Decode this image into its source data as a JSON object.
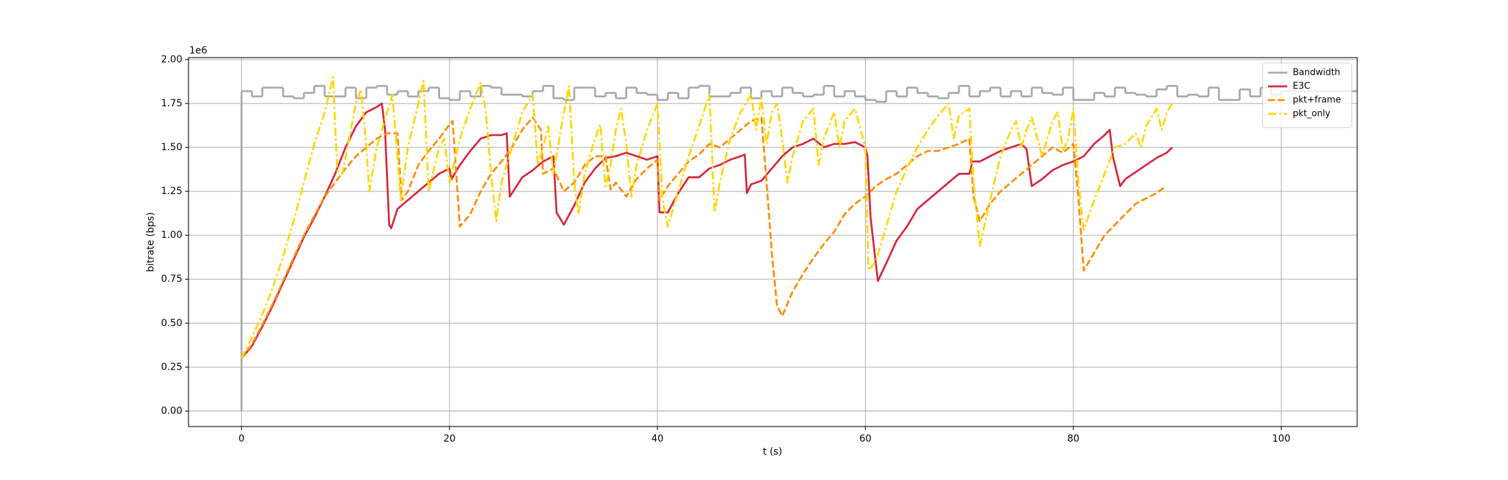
{
  "chart_data": {
    "type": "line",
    "x_label": "t (s)",
    "y_label": "bitrate (bps)",
    "y_offset_label": "1e6",
    "xlim": [
      -5.1,
      107.3
    ],
    "xticks": [
      0,
      20,
      40,
      60,
      80,
      100
    ],
    "ylim": [
      -88000,
      2011000
    ],
    "yticks": [
      {
        "value": 0,
        "label": "0.00"
      },
      {
        "value": 250000,
        "label": "0.25"
      },
      {
        "value": 500000,
        "label": "0.50"
      },
      {
        "value": 750000,
        "label": "0.75"
      },
      {
        "value": 1000000,
        "label": "1.00"
      },
      {
        "value": 1250000,
        "label": "1.25"
      },
      {
        "value": 1500000,
        "label": "1.50"
      },
      {
        "value": 1750000,
        "label": "1.75"
      },
      {
        "value": 2000000,
        "label": "2.00"
      }
    ],
    "grid": true,
    "legend": "upper right",
    "series": [
      {
        "name": "Bandwidth",
        "color": "#a9a9a9",
        "dash": "solid",
        "drawstyle": "steps-post",
        "x": [
          0,
          0,
          1,
          2,
          3,
          4,
          5,
          6,
          7,
          8,
          9,
          10,
          11,
          12,
          13,
          14,
          15,
          16,
          17,
          18,
          19,
          20,
          21,
          22,
          23,
          24,
          25,
          26,
          27,
          28,
          29,
          30,
          31,
          32,
          33,
          34,
          35,
          36,
          37,
          38,
          39,
          40,
          41,
          42,
          43,
          44,
          45,
          46,
          47,
          48,
          49,
          50,
          51,
          52,
          53,
          54,
          55,
          56,
          57,
          58,
          59,
          60,
          61,
          62,
          63,
          64,
          65,
          66,
          67,
          68,
          69,
          70,
          71,
          72,
          73,
          74,
          75,
          76,
          77,
          78,
          79,
          80,
          81,
          82,
          83,
          84,
          85,
          86,
          87,
          88,
          89,
          90,
          91,
          92,
          93,
          94,
          95,
          96,
          97,
          98,
          99,
          100
        ],
        "values": [
          0,
          1820000,
          1790000,
          1840000,
          1840000,
          1790000,
          1780000,
          1810000,
          1850000,
          1790000,
          1790000,
          1840000,
          1780000,
          1840000,
          1850000,
          1800000,
          1820000,
          1790000,
          1820000,
          1840000,
          1780000,
          1770000,
          1820000,
          1790000,
          1850000,
          1840000,
          1800000,
          1800000,
          1790000,
          1820000,
          1850000,
          1780000,
          1770000,
          1840000,
          1840000,
          1790000,
          1810000,
          1780000,
          1840000,
          1810000,
          1800000,
          1770000,
          1810000,
          1780000,
          1840000,
          1850000,
          1790000,
          1790000,
          1810000,
          1840000,
          1780000,
          1820000,
          1790000,
          1840000,
          1810000,
          1790000,
          1800000,
          1850000,
          1790000,
          1820000,
          1790000,
          1770000,
          1760000,
          1820000,
          1790000,
          1840000,
          1810000,
          1790000,
          1780000,
          1810000,
          1850000,
          1790000,
          1820000,
          1840000,
          1790000,
          1820000,
          1790000,
          1840000,
          1810000,
          1800000,
          1840000,
          1770000,
          1770000,
          1810000,
          1790000,
          1840000,
          1810000,
          1800000,
          1790000,
          1830000,
          1850000,
          1790000,
          1800000,
          1790000,
          1840000,
          1770000,
          1770000,
          1830000,
          1790000,
          1840000,
          1800000,
          1820000
        ]
      },
      {
        "name": "E3C",
        "color": "#d7263d",
        "dash": "solid",
        "x": [
          0,
          1,
          2,
          3,
          4,
          5,
          6,
          7,
          8,
          9,
          10,
          11,
          12,
          13,
          13.5,
          13.8,
          14.2,
          14.4,
          15,
          16,
          17,
          18,
          19,
          20,
          20.2,
          21,
          22,
          23,
          24,
          25,
          25.5,
          25.8,
          27,
          28,
          29,
          30,
          30.3,
          31,
          32,
          33,
          34,
          35,
          36,
          37,
          38,
          39,
          40,
          40.2,
          41,
          42,
          43,
          44,
          45,
          46,
          47,
          48,
          48.4,
          48.6,
          49,
          50,
          51,
          52,
          53,
          54,
          55,
          56,
          57,
          58,
          59,
          60,
          60.2,
          60.5,
          61.2,
          62,
          63,
          64,
          65,
          66,
          67,
          68,
          69,
          70,
          70.3,
          71,
          72,
          73,
          74,
          75,
          75.5,
          76,
          77,
          78,
          79,
          80,
          81,
          82,
          83,
          83.5,
          83.8,
          84.5,
          85,
          86,
          87,
          88,
          89,
          89.5
        ],
        "values": [
          300000,
          370000,
          480000,
          600000,
          730000,
          860000,
          990000,
          1100000,
          1220000,
          1350000,
          1500000,
          1620000,
          1700000,
          1730000,
          1750000,
          1600000,
          1060000,
          1040000,
          1150000,
          1200000,
          1250000,
          1300000,
          1350000,
          1380000,
          1320000,
          1400000,
          1480000,
          1550000,
          1570000,
          1570000,
          1580000,
          1220000,
          1330000,
          1370000,
          1420000,
          1450000,
          1130000,
          1060000,
          1170000,
          1300000,
          1380000,
          1440000,
          1450000,
          1470000,
          1450000,
          1430000,
          1450000,
          1130000,
          1130000,
          1240000,
          1330000,
          1330000,
          1380000,
          1400000,
          1430000,
          1450000,
          1460000,
          1240000,
          1290000,
          1310000,
          1380000,
          1450000,
          1500000,
          1520000,
          1550000,
          1500000,
          1520000,
          1520000,
          1530000,
          1500000,
          1450000,
          1100000,
          740000,
          840000,
          970000,
          1050000,
          1150000,
          1200000,
          1250000,
          1300000,
          1350000,
          1350000,
          1420000,
          1420000,
          1450000,
          1480000,
          1500000,
          1520000,
          1490000,
          1280000,
          1320000,
          1370000,
          1400000,
          1420000,
          1450000,
          1520000,
          1570000,
          1600000,
          1450000,
          1280000,
          1320000,
          1360000,
          1400000,
          1440000,
          1470000,
          1500000
        ]
      },
      {
        "name": "pkt+frame",
        "color": "#ff8c00",
        "dash": "dashed",
        "x": [
          0,
          1,
          2,
          3,
          4,
          5,
          6,
          7,
          8,
          9,
          10,
          11,
          12,
          13,
          14,
          15,
          15.4,
          16,
          17,
          18,
          19,
          20,
          20.3,
          21,
          22,
          23,
          24,
          25,
          26,
          27,
          28,
          28.8,
          29,
          30,
          31,
          32,
          33,
          34,
          35,
          35.5,
          36,
          37,
          38,
          39,
          40,
          40.2,
          41,
          42,
          43,
          44,
          45,
          46,
          47,
          48,
          49,
          50,
          50.5,
          51,
          51.5,
          52,
          53,
          54,
          55,
          56,
          57,
          58,
          59,
          60,
          61,
          62,
          63,
          64,
          65,
          66,
          67,
          68,
          69,
          70,
          70.4,
          71,
          72,
          73,
          74,
          75,
          76,
          77,
          78,
          79,
          80,
          80.5,
          81,
          82,
          83,
          84,
          85,
          86,
          87,
          88,
          88.7
        ],
        "values": [
          300000,
          380000,
          490000,
          610000,
          740000,
          870000,
          1000000,
          1110000,
          1220000,
          1300000,
          1380000,
          1450000,
          1500000,
          1550000,
          1580000,
          1580000,
          1200000,
          1250000,
          1400000,
          1480000,
          1550000,
          1630000,
          1650000,
          1050000,
          1120000,
          1250000,
          1350000,
          1420000,
          1500000,
          1600000,
          1670000,
          1600000,
          1350000,
          1380000,
          1250000,
          1300000,
          1400000,
          1450000,
          1450000,
          1260000,
          1300000,
          1220000,
          1320000,
          1380000,
          1430000,
          1200000,
          1280000,
          1350000,
          1420000,
          1460000,
          1520000,
          1500000,
          1550000,
          1600000,
          1650000,
          1670000,
          1300000,
          900000,
          600000,
          540000,
          680000,
          780000,
          870000,
          950000,
          1020000,
          1120000,
          1180000,
          1220000,
          1280000,
          1320000,
          1350000,
          1400000,
          1450000,
          1480000,
          1480000,
          1500000,
          1520000,
          1550000,
          1220000,
          1080000,
          1180000,
          1250000,
          1300000,
          1350000,
          1400000,
          1450000,
          1500000,
          1470000,
          1520000,
          1200000,
          800000,
          900000,
          1000000,
          1060000,
          1120000,
          1180000,
          1210000,
          1240000,
          1270000
        ]
      },
      {
        "name": "pkt_only",
        "color": "#ffd700",
        "dash": "dashdot",
        "x": [
          0,
          1,
          2,
          3,
          4,
          5,
          6,
          7,
          8,
          8.8,
          9.2,
          9.7,
          10.5,
          11,
          11.5,
          12,
          12.3,
          13,
          14,
          14.5,
          15,
          15.3,
          16,
          17,
          17.5,
          18,
          19,
          19.5,
          20,
          21,
          22,
          23,
          23.5,
          24,
          24.5,
          25,
          26,
          27,
          28,
          28.5,
          29,
          29.5,
          30,
          31,
          31.5,
          32,
          32.4,
          33,
          34,
          34.5,
          35,
          35.5,
          36,
          36.5,
          37,
          37.5,
          38,
          39,
          40,
          40.5,
          41,
          42,
          43,
          44,
          45,
          45.5,
          46,
          47,
          48,
          49,
          49.5,
          50,
          50.5,
          51,
          51.5,
          52,
          52.5,
          53,
          54,
          55,
          55.5,
          56,
          57,
          57.5,
          58,
          59,
          60,
          60.3,
          61,
          62,
          63,
          64,
          65,
          66,
          67,
          68,
          68.5,
          69,
          70,
          70.4,
          71,
          72,
          73,
          74,
          74.5,
          75,
          75.5,
          76,
          77,
          77.5,
          78,
          78.5,
          79,
          79.5,
          80,
          80.5,
          81,
          82,
          83,
          84,
          85,
          86,
          86.5,
          87,
          88,
          88.5,
          89,
          89.5
        ],
        "values": [
          300000,
          420000,
          550000,
          700000,
          880000,
          1080000,
          1300000,
          1520000,
          1700000,
          1900000,
          1370000,
          1350000,
          1600000,
          1750000,
          1830000,
          1500000,
          1250000,
          1500000,
          1700000,
          1800000,
          1450000,
          1200000,
          1500000,
          1750000,
          1880000,
          1250000,
          1500000,
          1550000,
          1300000,
          1550000,
          1720000,
          1870000,
          1700000,
          1350000,
          1080000,
          1300000,
          1500000,
          1700000,
          1800000,
          1400000,
          1500000,
          1620000,
          1350000,
          1700000,
          1850000,
          1300000,
          1120000,
          1350000,
          1550000,
          1630000,
          1280000,
          1400000,
          1600000,
          1720000,
          1520000,
          1220000,
          1400000,
          1600000,
          1750000,
          1200000,
          1050000,
          1250000,
          1450000,
          1620000,
          1800000,
          1130000,
          1300000,
          1550000,
          1700000,
          1800000,
          1600000,
          1780000,
          1520000,
          1700000,
          1750000,
          1550000,
          1300000,
          1450000,
          1650000,
          1720000,
          1400000,
          1550000,
          1700000,
          1500000,
          1650000,
          1720000,
          1500000,
          800000,
          850000,
          1050000,
          1250000,
          1380000,
          1500000,
          1600000,
          1680000,
          1750000,
          1550000,
          1680000,
          1720000,
          1300000,
          940000,
          1200000,
          1450000,
          1600000,
          1650000,
          1500000,
          1600000,
          1670000,
          1450000,
          1550000,
          1650000,
          1700000,
          1480000,
          1550000,
          1720000,
          1300000,
          1030000,
          1200000,
          1350000,
          1500000,
          1520000,
          1580000,
          1500000,
          1620000,
          1720000,
          1600000,
          1700000,
          1750000
        ]
      }
    ]
  }
}
